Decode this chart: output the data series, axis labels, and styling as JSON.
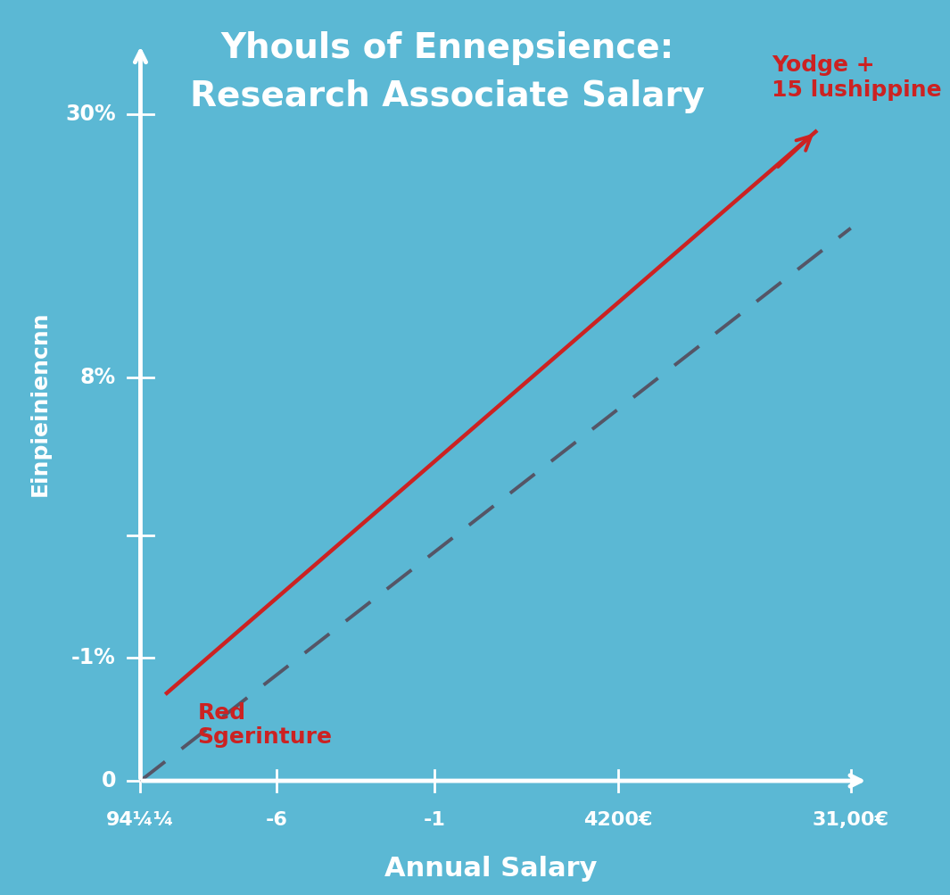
{
  "title_line1": "Yhouls of Ennepsience:",
  "title_line2": "Research Associate Salary",
  "xlabel": "Annual Salary",
  "ylabel": "Einpieiniencnn",
  "background_color": "#5BB8D4",
  "title_color": "#FFFFFF",
  "axis_color": "#FFFFFF",
  "label_color": "#FFFFFF",
  "tick_label_color": "#FFFFFF",
  "red_color": "#CC2222",
  "dashed_color": "#555566",
  "annotation_top_text": "Yodge +\n15 lushippine",
  "annotation_top_color": "#CC2222",
  "annotation_bottom_text": "Red\nSgerinture",
  "annotation_bottom_color": "#CC2222",
  "xlim": [
    0,
    10
  ],
  "ylim": [
    0,
    10
  ]
}
